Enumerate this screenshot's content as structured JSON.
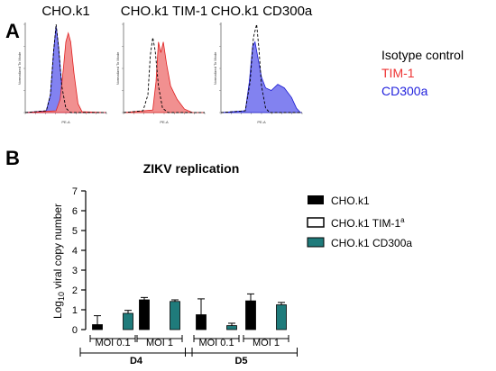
{
  "panel_a": {
    "letter": "A",
    "plots": [
      {
        "title": "CHO.k1",
        "y_axis_label": "Normalized To Mode",
        "x_axis_label": "PE-A",
        "shown": "TIM-1"
      },
      {
        "title": "CHO.k1 TIM-1",
        "y_axis_label": "Normalized To Mode",
        "x_axis_label": "PE-A",
        "shown": "TIM-1"
      },
      {
        "title": "CHO.k1 CD300a",
        "y_axis_label": "Normalized To Mode",
        "x_axis_label": "PE-A",
        "shown": "CD300a"
      }
    ],
    "legend": [
      {
        "label": "Isotype control",
        "color": "#000000"
      },
      {
        "label": "TIM-1",
        "color": "#ee3333"
      },
      {
        "label": "CD300a",
        "color": "#2222dd"
      }
    ],
    "colors": {
      "tim1_fill": "#f08a8a",
      "tim1_line": "#e02020",
      "cd300a_fill": "#7b7bef",
      "cd300a_line": "#1a1ad0",
      "isotype": "#000000"
    }
  },
  "panel_b": {
    "letter": "B",
    "ylabel_prefix": "Log",
    "ylabel_sub": "10",
    "ylabel_rest": " viral copy number",
    "legend": [
      {
        "label": "CHO.k1",
        "sup": "",
        "color": "#000000",
        "style": "solid"
      },
      {
        "label": "CHO.k1 TIM-1",
        "sup": "a",
        "color": "#ffffff",
        "style": "outline"
      },
      {
        "label": "CHO.k1 CD300a",
        "sup": "",
        "color": "#1f7b7b",
        "style": "solid"
      }
    ]
  },
  "chart_data": {
    "type": "bar",
    "title": "ZIKV replication",
    "ylim": [
      0,
      7
    ],
    "yticks": [
      "0",
      "1",
      "2",
      "3",
      "4",
      "5",
      "6",
      "7"
    ],
    "groups": [
      {
        "label": "MOI 0.1",
        "day": "D4"
      },
      {
        "label": "MOI 1",
        "day": "D4"
      },
      {
        "label": "MOI 0.1",
        "day": "D5"
      },
      {
        "label": "MOI 1",
        "day": "D5"
      }
    ],
    "days": [
      "D4",
      "D5"
    ],
    "series": [
      {
        "name": "CHO.k1",
        "values": [
          0.25,
          1.5,
          0.75,
          1.45
        ],
        "errors": [
          0.45,
          0.12,
          0.8,
          0.35
        ]
      },
      {
        "name": "CHO.k1 TIM-1",
        "values": [
          0,
          0,
          0,
          0
        ],
        "errors": [
          0,
          0,
          0,
          0
        ]
      },
      {
        "name": "CHO.k1 CD300a",
        "values": [
          0.82,
          1.42,
          0.2,
          1.25
        ],
        "errors": [
          0.15,
          0.08,
          0.12,
          0.12
        ]
      }
    ]
  }
}
